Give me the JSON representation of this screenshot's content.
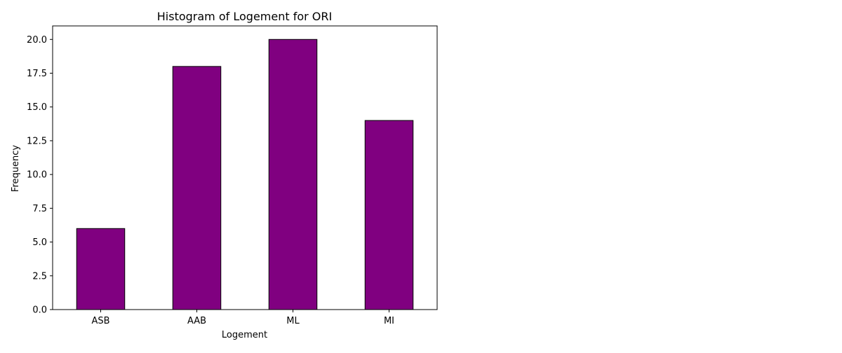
{
  "chart_data": {
    "type": "bar",
    "title": "Histogram of Logement for ORI",
    "xlabel": "Logement",
    "ylabel": "Frequency",
    "categories": [
      "ASB",
      "AAB",
      "ML",
      "MI"
    ],
    "values": [
      6,
      18,
      20,
      14
    ],
    "ylim": [
      0,
      21
    ],
    "yticks": [
      0.0,
      2.5,
      5.0,
      7.5,
      10.0,
      12.5,
      15.0,
      17.5,
      20.0
    ],
    "ytick_labels": [
      "0.0",
      "2.5",
      "5.0",
      "7.5",
      "10.0",
      "12.5",
      "15.0",
      "17.5",
      "20.0"
    ],
    "grid": false,
    "legend": "none",
    "bar_color": "#800080",
    "edge_color": "#000000"
  }
}
